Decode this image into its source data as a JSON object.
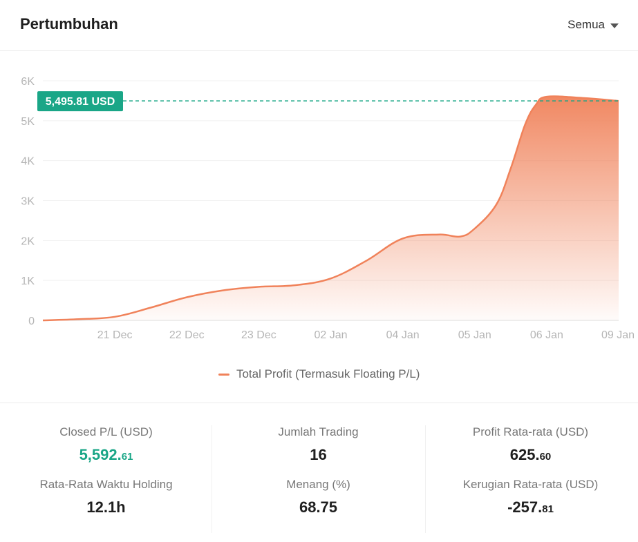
{
  "header": {
    "title": "Pertumbuhan",
    "filter_label": "Semua"
  },
  "chart_data": {
    "type": "area",
    "title": "",
    "xlabel": "",
    "ylabel": "",
    "ylim": [
      0,
      6000
    ],
    "y_ticks": [
      0,
      1000,
      2000,
      3000,
      4000,
      5000,
      6000
    ],
    "y_tick_labels": [
      "0",
      "1K",
      "2K",
      "3K",
      "4K",
      "5K",
      "6K"
    ],
    "x_tick_labels": [
      "21 Dec",
      "22 Dec",
      "23 Dec",
      "02 Jan",
      "04 Jan",
      "05 Jan",
      "06 Jan",
      "09 Jan"
    ],
    "x_positions": [
      1,
      2,
      3,
      4,
      5,
      6,
      7,
      8
    ],
    "series": [
      {
        "name": "Total Profit (Termasuk Floating P/L)",
        "color": "#f0825a",
        "x": [
          0,
          0.5,
          1,
          1.5,
          2,
          2.5,
          3,
          3.5,
          4,
          4.5,
          5,
          5.5,
          5.8,
          6,
          6.3,
          6.5,
          6.7,
          6.85,
          7,
          7.5,
          8
        ],
        "y": [
          0,
          30,
          90,
          320,
          580,
          750,
          840,
          880,
          1050,
          1500,
          2050,
          2150,
          2100,
          2300,
          2900,
          3800,
          4900,
          5400,
          5600,
          5570,
          5495
        ]
      }
    ],
    "current_value_label": "5,495.81 USD",
    "current_value": 5495.81,
    "grid": true,
    "legend_position": "bottom"
  },
  "stats": [
    {
      "label": "Closed P/L (USD)",
      "int": "5,592.",
      "dec": "61",
      "color": "green"
    },
    {
      "label": "Jumlah Trading",
      "int": "16",
      "dec": "",
      "color": "dark"
    },
    {
      "label": "Profit Rata-rata (USD)",
      "int": "625.",
      "dec": "60",
      "color": "dark"
    },
    {
      "label": "Rata-Rata Waktu Holding",
      "int": "12.1h",
      "dec": "",
      "color": "dark"
    },
    {
      "label": "Menang (%)",
      "int": "68.75",
      "dec": "",
      "color": "dark"
    },
    {
      "label": "Kerugian Rata-rata (USD)",
      "int": "-257.",
      "dec": "81",
      "color": "dark"
    }
  ]
}
